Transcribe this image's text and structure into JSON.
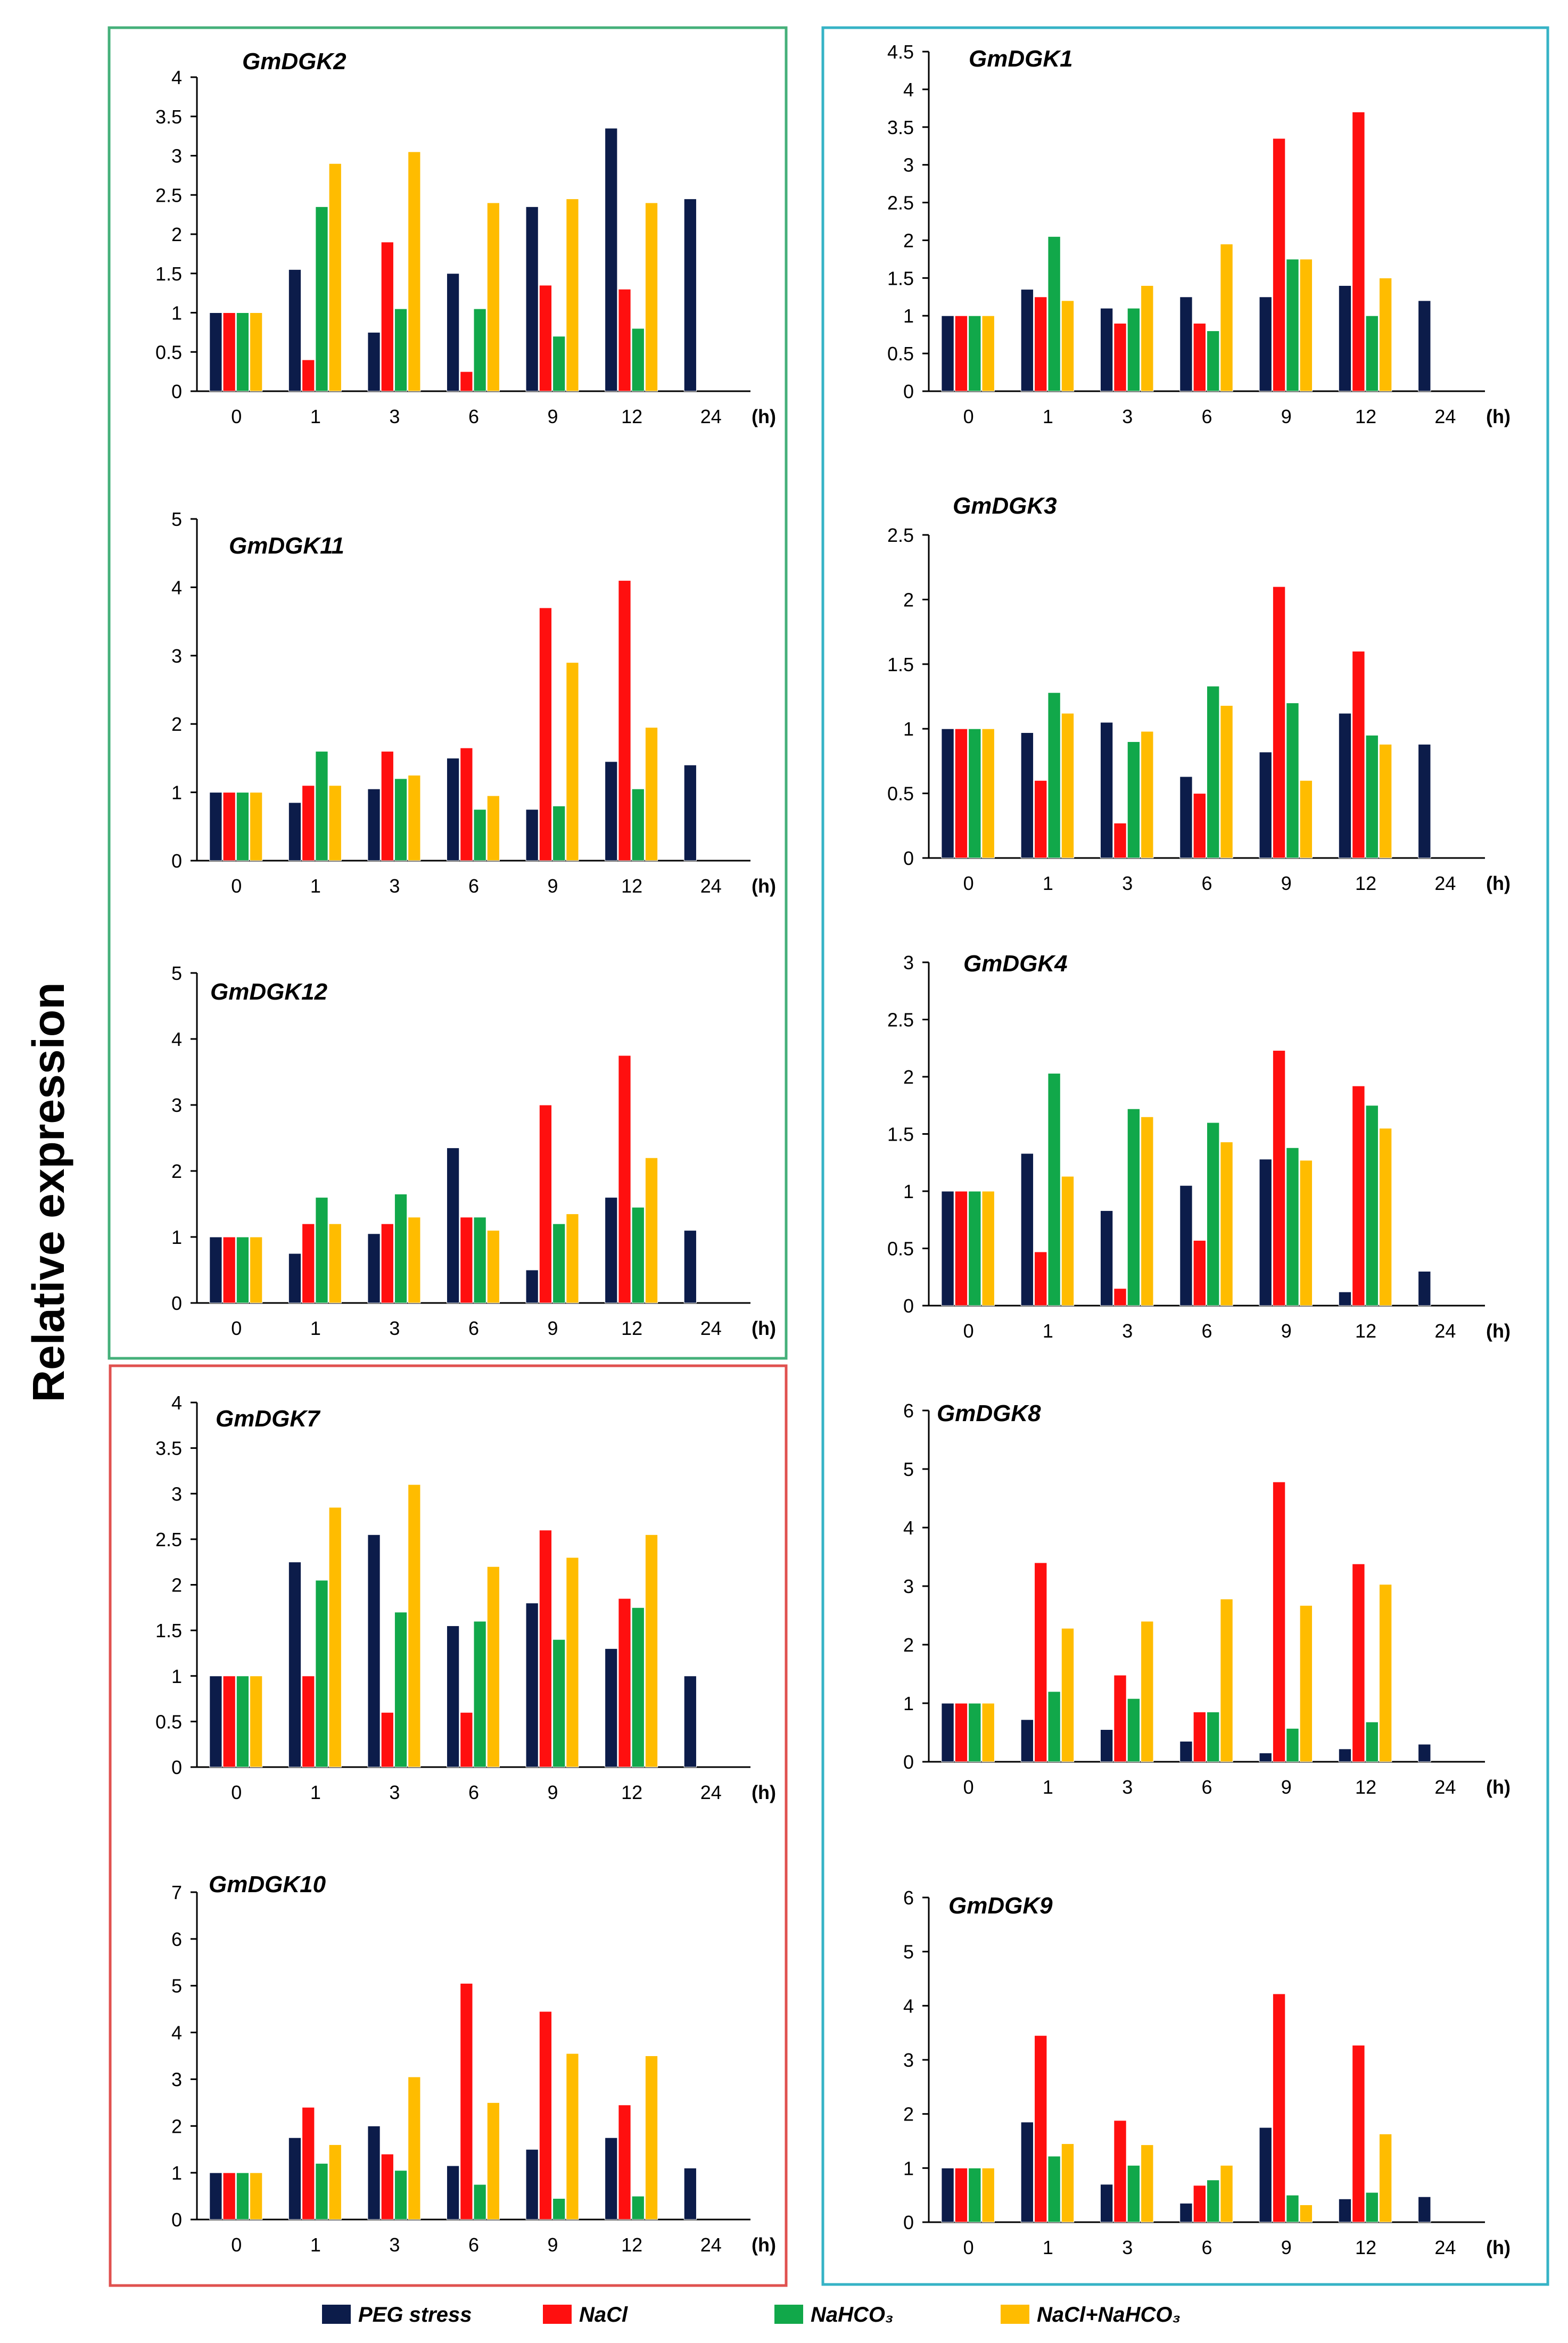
{
  "y_label": "Relative expression",
  "unit_label": "(h)",
  "colors": {
    "PEG stress": "#0c1c4a",
    "NaCl": "#ff0f0f",
    "NaHCO3": "#11a84a",
    "NaCl+NaHCO3": "#ffbc00",
    "green_box": "#45b07a",
    "red_box": "#e0514f",
    "teal_box": "#36b3c6",
    "error_bar": "#9a9a9a"
  },
  "legend": [
    {
      "key": "PEG stress",
      "label": "PEG stress"
    },
    {
      "key": "NaCl",
      "label": "NaCl"
    },
    {
      "key": "NaHCO3",
      "label": "NaHCO₃"
    },
    {
      "key": "NaCl+NaHCO3",
      "label": "NaCl+NaHCO₃"
    }
  ],
  "chart_data": [
    {
      "type": "bar",
      "title": "GmDGK2",
      "categories": [
        "0",
        "1",
        "3",
        "6",
        "9",
        "12",
        "24"
      ],
      "ylim": [
        0,
        4
      ],
      "yticks": [
        "0",
        "0.5",
        "1",
        "1.5",
        "2",
        "2.5",
        "3",
        "3.5",
        "4"
      ],
      "xlabel": "(h)",
      "ylabel": "Relative expression",
      "series": [
        {
          "name": "PEG stress",
          "values": [
            1,
            1.55,
            0.75,
            1.5,
            2.35,
            3.35,
            2.45
          ]
        },
        {
          "name": "NaCl",
          "values": [
            1,
            0.4,
            1.9,
            0.25,
            1.35,
            1.3,
            null
          ]
        },
        {
          "name": "NaHCO3",
          "values": [
            1,
            2.35,
            1.05,
            1.05,
            0.7,
            0.8,
            null
          ]
        },
        {
          "name": "NaCl+NaHCO3",
          "values": [
            1,
            2.9,
            3.05,
            2.4,
            2.45,
            2.4,
            null
          ]
        }
      ]
    },
    {
      "type": "bar",
      "title": "GmDGK11",
      "categories": [
        "0",
        "1",
        "3",
        "6",
        "9",
        "12",
        "24"
      ],
      "ylim": [
        0,
        5
      ],
      "yticks": [
        "0",
        "1",
        "2",
        "3",
        "4",
        "5"
      ],
      "xlabel": "(h)",
      "ylabel": "Relative expression",
      "series": [
        {
          "name": "PEG stress",
          "values": [
            1,
            0.85,
            1.05,
            1.5,
            0.75,
            1.45,
            1.4
          ]
        },
        {
          "name": "NaCl",
          "values": [
            1,
            1.1,
            1.6,
            1.65,
            3.7,
            4.1,
            null
          ]
        },
        {
          "name": "NaHCO3",
          "values": [
            1,
            1.6,
            1.2,
            0.75,
            0.8,
            1.05,
            null
          ]
        },
        {
          "name": "NaCl+NaHCO3",
          "values": [
            1,
            1.1,
            1.25,
            0.95,
            2.9,
            1.95,
            null
          ]
        }
      ]
    },
    {
      "type": "bar",
      "title": "GmDGK12",
      "categories": [
        "0",
        "1",
        "3",
        "6",
        "9",
        "12",
        "24"
      ],
      "ylim": [
        0,
        5
      ],
      "yticks": [
        "0",
        "1",
        "2",
        "3",
        "4",
        "5"
      ],
      "xlabel": "(h)",
      "ylabel": "Relative expression",
      "series": [
        {
          "name": "PEG stress",
          "values": [
            1,
            0.75,
            1.05,
            2.35,
            0.5,
            1.6,
            1.1
          ]
        },
        {
          "name": "NaCl",
          "values": [
            1,
            1.2,
            1.2,
            1.3,
            3,
            3.75,
            null
          ]
        },
        {
          "name": "NaHCO3",
          "values": [
            1,
            1.6,
            1.65,
            1.3,
            1.2,
            1.45,
            null
          ]
        },
        {
          "name": "NaCl+NaHCO3",
          "values": [
            1,
            1.2,
            1.3,
            1.1,
            1.35,
            2.2,
            null
          ]
        }
      ]
    },
    {
      "type": "bar",
      "title": "GmDGK7",
      "categories": [
        "0",
        "1",
        "3",
        "6",
        "9",
        "12",
        "24"
      ],
      "ylim": [
        0,
        4
      ],
      "yticks": [
        "0",
        "0.5",
        "1",
        "1.5",
        "2",
        "2.5",
        "3",
        "3.5",
        "4"
      ],
      "xlabel": "(h)",
      "ylabel": "Relative expression",
      "series": [
        {
          "name": "PEG stress",
          "values": [
            1,
            2.25,
            2.55,
            1.55,
            1.8,
            1.3,
            1
          ]
        },
        {
          "name": "NaCl",
          "values": [
            1,
            1,
            0.6,
            0.6,
            2.6,
            1.85,
            null
          ]
        },
        {
          "name": "NaHCO3",
          "values": [
            1,
            2.05,
            1.7,
            1.6,
            1.4,
            1.75,
            null
          ]
        },
        {
          "name": "NaCl+NaHCO3",
          "values": [
            1,
            2.85,
            3.1,
            2.2,
            2.3,
            2.55,
            null
          ]
        }
      ]
    },
    {
      "type": "bar",
      "title": "GmDGK10",
      "categories": [
        "0",
        "1",
        "3",
        "6",
        "9",
        "12",
        "24"
      ],
      "ylim": [
        0,
        7
      ],
      "yticks": [
        "0",
        "1",
        "2",
        "3",
        "4",
        "5",
        "6",
        "7"
      ],
      "xlabel": "(h)",
      "ylabel": "Relative expression",
      "series": [
        {
          "name": "PEG stress",
          "values": [
            1,
            1.75,
            2,
            1.15,
            1.5,
            1.75,
            1.1
          ]
        },
        {
          "name": "NaCl",
          "values": [
            1,
            2.4,
            1.4,
            5.05,
            4.45,
            2.45,
            null
          ]
        },
        {
          "name": "NaHCO3",
          "values": [
            1,
            1.2,
            1.05,
            0.75,
            0.45,
            0.5,
            null
          ]
        },
        {
          "name": "NaCl+NaHCO3",
          "values": [
            1,
            1.6,
            3.05,
            2.5,
            3.55,
            3.5,
            null
          ]
        }
      ]
    },
    {
      "type": "bar",
      "title": "GmDGK1",
      "categories": [
        "0",
        "1",
        "3",
        "6",
        "9",
        "12",
        "24"
      ],
      "ylim": [
        0,
        4.5
      ],
      "yticks": [
        "0",
        "0.5",
        "1",
        "1.5",
        "2",
        "2.5",
        "3",
        "3.5",
        "4",
        "4.5"
      ],
      "xlabel": "(h)",
      "ylabel": "Relative expression",
      "series": [
        {
          "name": "PEG stress",
          "values": [
            1,
            1.35,
            1.1,
            1.25,
            1.25,
            1.4,
            1.2
          ]
        },
        {
          "name": "NaCl",
          "values": [
            1,
            1.25,
            0.9,
            0.9,
            3.35,
            3.7,
            null
          ]
        },
        {
          "name": "NaHCO3",
          "values": [
            1,
            2.05,
            1.1,
            0.8,
            1.75,
            1,
            null
          ]
        },
        {
          "name": "NaCl+NaHCO3",
          "values": [
            1,
            1.2,
            1.4,
            1.95,
            1.75,
            1.5,
            null
          ]
        }
      ]
    },
    {
      "type": "bar",
      "title": "GmDGK3",
      "categories": [
        "0",
        "1",
        "3",
        "6",
        "9",
        "12",
        "24"
      ],
      "ylim": [
        0,
        2.5
      ],
      "yticks": [
        "0",
        "0.5",
        "1",
        "1.5",
        "2",
        "2.5"
      ],
      "xlabel": "(h)",
      "ylabel": "Relative expression",
      "series": [
        {
          "name": "PEG stress",
          "values": [
            1,
            0.97,
            1.05,
            0.63,
            0.82,
            1.12,
            0.88
          ]
        },
        {
          "name": "NaCl",
          "values": [
            1,
            0.6,
            0.27,
            0.5,
            2.1,
            1.6,
            null
          ]
        },
        {
          "name": "NaHCO3",
          "values": [
            1,
            1.28,
            0.9,
            1.33,
            1.2,
            0.95,
            null
          ]
        },
        {
          "name": "NaCl+NaHCO3",
          "values": [
            1,
            1.12,
            0.98,
            1.18,
            0.6,
            0.88,
            null
          ]
        }
      ]
    },
    {
      "type": "bar",
      "title": "GmDGK4",
      "categories": [
        "0",
        "1",
        "3",
        "6",
        "9",
        "12",
        "24"
      ],
      "ylim": [
        0,
        3
      ],
      "yticks": [
        "0",
        "0.5",
        "1",
        "1.5",
        "2",
        "2.5",
        "3"
      ],
      "xlabel": "(h)",
      "ylabel": "Relative expression",
      "series": [
        {
          "name": "PEG stress",
          "values": [
            1,
            1.33,
            0.83,
            1.05,
            1.28,
            0.12,
            0.3
          ]
        },
        {
          "name": "NaCl",
          "values": [
            1,
            0.47,
            0.15,
            0.57,
            2.23,
            1.92,
            null
          ]
        },
        {
          "name": "NaHCO3",
          "values": [
            1,
            2.03,
            1.72,
            1.6,
            1.38,
            1.75,
            null
          ]
        },
        {
          "name": "NaCl+NaHCO3",
          "values": [
            1,
            1.13,
            1.65,
            1.43,
            1.27,
            1.55,
            null
          ]
        }
      ]
    },
    {
      "type": "bar",
      "title": "GmDGK8",
      "categories": [
        "0",
        "1",
        "3",
        "6",
        "9",
        "12",
        "24"
      ],
      "ylim": [
        0,
        6
      ],
      "yticks": [
        "0",
        "1",
        "2",
        "3",
        "4",
        "5",
        "6"
      ],
      "xlabel": "(h)",
      "ylabel": "Relative expression",
      "series": [
        {
          "name": "PEG stress",
          "values": [
            1,
            0.72,
            0.55,
            0.35,
            0.15,
            0.22,
            0.3
          ]
        },
        {
          "name": "NaCl",
          "values": [
            1,
            3.4,
            1.48,
            0.85,
            4.78,
            3.38,
            null
          ]
        },
        {
          "name": "NaHCO3",
          "values": [
            1,
            1.2,
            1.08,
            0.85,
            0.57,
            0.68,
            null
          ]
        },
        {
          "name": "NaCl+NaHCO3",
          "values": [
            1,
            2.28,
            2.4,
            2.78,
            2.67,
            3.03,
            null
          ]
        }
      ]
    },
    {
      "type": "bar",
      "title": "GmDGK9",
      "categories": [
        "0",
        "1",
        "3",
        "6",
        "9",
        "12",
        "24"
      ],
      "ylim": [
        0,
        6
      ],
      "yticks": [
        "0",
        "1",
        "2",
        "3",
        "4",
        "5",
        "6"
      ],
      "xlabel": "(h)",
      "ylabel": "Relative expression",
      "series": [
        {
          "name": "PEG stress",
          "values": [
            1,
            1.85,
            0.7,
            0.35,
            1.75,
            0.43,
            0.47
          ]
        },
        {
          "name": "NaCl",
          "values": [
            1,
            3.45,
            1.88,
            0.68,
            4.22,
            3.27,
            null
          ]
        },
        {
          "name": "NaHCO3",
          "values": [
            1,
            1.22,
            1.05,
            0.78,
            0.5,
            0.55,
            null
          ]
        },
        {
          "name": "NaCl+NaHCO3",
          "values": [
            1,
            1.45,
            1.43,
            1.05,
            0.32,
            1.63,
            null
          ]
        }
      ]
    }
  ]
}
